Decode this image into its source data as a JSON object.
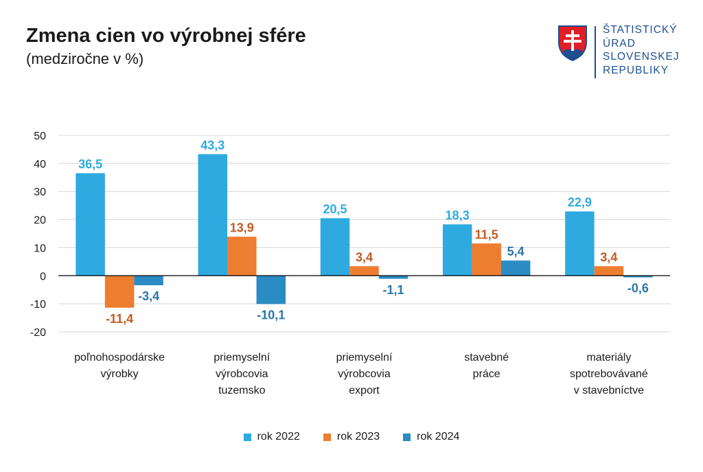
{
  "header": {
    "title": "Zmena cien vo výrobnej sfére",
    "subtitle": "(medziročne v %)"
  },
  "logo": {
    "lines": [
      "ŠTATISTICKÝ",
      "ÚRAD",
      "SLOVENSKEJ",
      "REPUBLIKY"
    ],
    "text_color": "#1d4f91",
    "shield_color": "#1d4f91",
    "shield_fill": "#e11e26"
  },
  "chart_data": {
    "type": "bar",
    "title": "Zmena cien vo výrobnej sfére",
    "subtitle": "(medziročne v %)",
    "categories": [
      [
        "poľnohospodárske",
        "výrobky"
      ],
      [
        "priemyselní",
        "výrobcovia",
        "tuzemsko"
      ],
      [
        "priemyselní",
        "výrobcovia",
        "export"
      ],
      [
        "stavebné",
        "práce"
      ],
      [
        "materiály",
        "spotrebovávané",
        "v stavebníctve"
      ]
    ],
    "series": [
      {
        "name": "rok 2022",
        "color": "#2eaae1",
        "label_color": "#2eaae1",
        "values": [
          36.5,
          43.3,
          20.5,
          18.3,
          22.9
        ],
        "labels": [
          "36,5",
          "43,3",
          "20,5",
          "18,3",
          "22,9"
        ]
      },
      {
        "name": "rok 2023",
        "color": "#ed7d31",
        "label_color": "#c55a20",
        "values": [
          -11.4,
          13.9,
          3.4,
          11.5,
          3.4
        ],
        "labels": [
          "-11,4",
          "13,9",
          "3,4",
          "11,5",
          "3,4"
        ]
      },
      {
        "name": "rok 2024",
        "color": "#2b8cc4",
        "label_color": "#2a75a8",
        "values": [
          -3.4,
          -10.1,
          -1.1,
          5.4,
          -0.6
        ],
        "labels": [
          "-3,4",
          "-10,1",
          "-1,1",
          "5,4",
          "-0,6"
        ]
      }
    ],
    "ylim": [
      -20,
      50
    ],
    "yticks": [
      50,
      40,
      30,
      20,
      10,
      0,
      -10,
      -20
    ],
    "grid": true,
    "legend_position": "bottom",
    "xlabel": "",
    "ylabel": ""
  }
}
